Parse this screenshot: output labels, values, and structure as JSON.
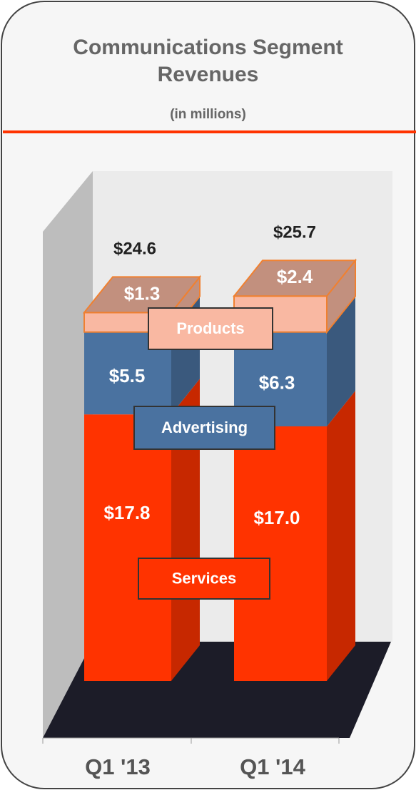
{
  "chart_data": {
    "type": "stacked-bar-3d",
    "title": "Communications Segment Revenues",
    "subtitle": "(in millions)",
    "categories": [
      "Q1 '13",
      "Q1 '14"
    ],
    "series": [
      {
        "name": "Services",
        "color": "#ff3300",
        "values": [
          17.8,
          17.0
        ],
        "value_labels": [
          "$17.8",
          "$17.0"
        ]
      },
      {
        "name": "Advertising",
        "color": "#4a72a0",
        "values": [
          5.5,
          6.3
        ],
        "value_labels": [
          "$5.5",
          "$6.3"
        ]
      },
      {
        "name": "Products",
        "color": "#f9b8a2",
        "values": [
          1.3,
          2.4
        ],
        "value_labels": [
          "$1.3",
          "$2.4"
        ]
      }
    ],
    "totals": [
      24.6,
      25.7
    ],
    "total_labels": [
      "$24.6",
      "$25.7"
    ]
  }
}
